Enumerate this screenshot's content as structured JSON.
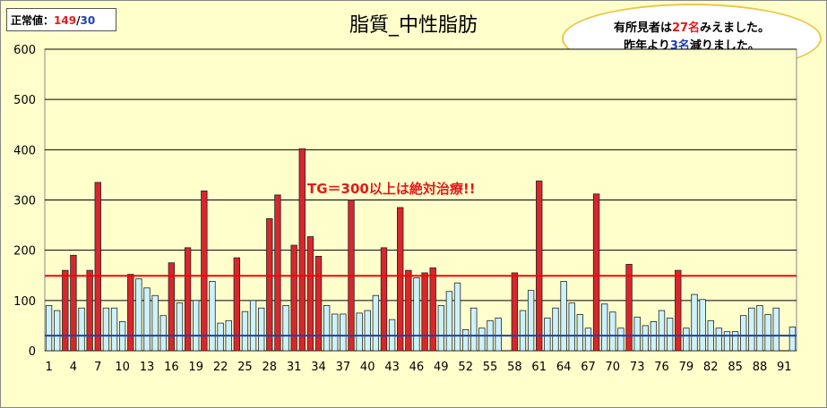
{
  "normal_box": {
    "label": "正常値：",
    "upper": "149",
    "sep": "/",
    "lower": "30"
  },
  "note": {
    "line1_prefix": "有所見者は",
    "line1_num": "27名",
    "line1_suffix": "みえました。",
    "line2_prefix": "昨年より",
    "line2_num": "3名",
    "line2_suffix": "減りました。"
  },
  "colors": {
    "abnormal": "#d9262c",
    "normal": "#ccf2ff",
    "upper_line": "#ff0000",
    "lower_line": "#1f3fb3"
  },
  "chart_data": {
    "type": "bar",
    "title": "脂質_中性脂肪",
    "ylim": [
      0,
      600
    ],
    "yticks": [
      0,
      100,
      200,
      300,
      400,
      500,
      600
    ],
    "xtick_labels": [
      "1",
      "4",
      "7",
      "10",
      "13",
      "16",
      "19",
      "22",
      "25",
      "28",
      "31",
      "34",
      "37",
      "40",
      "43",
      "46",
      "49",
      "52",
      "55",
      "58",
      "61",
      "64",
      "67",
      "70",
      "73",
      "76",
      "79",
      "82",
      "85",
      "88",
      "91"
    ],
    "grid": true,
    "thresholds": [
      {
        "value": 149,
        "color": "#ff0000"
      },
      {
        "value": 30,
        "color": "#1f3fb3"
      }
    ],
    "annotation": "TG＝300以上は絶対治療!!",
    "values": [
      90,
      80,
      160,
      190,
      85,
      160,
      335,
      85,
      85,
      58,
      152,
      143,
      125,
      110,
      70,
      175,
      95,
      205,
      100,
      318,
      138,
      55,
      60,
      185,
      78,
      100,
      85,
      263,
      310,
      90,
      210,
      402,
      227,
      188,
      90,
      73,
      73,
      300,
      75,
      80,
      110,
      205,
      62,
      285,
      160,
      145,
      155,
      165,
      90,
      118,
      135,
      42,
      85,
      45,
      60,
      65,
      0,
      155,
      80,
      120,
      338,
      65,
      85,
      138,
      95,
      72,
      45,
      312,
      93,
      77,
      45,
      172,
      67,
      50,
      58,
      80,
      65,
      160,
      45,
      112,
      102,
      60,
      45,
      38,
      38,
      70,
      85,
      90,
      72,
      85,
      0,
      47
    ]
  }
}
